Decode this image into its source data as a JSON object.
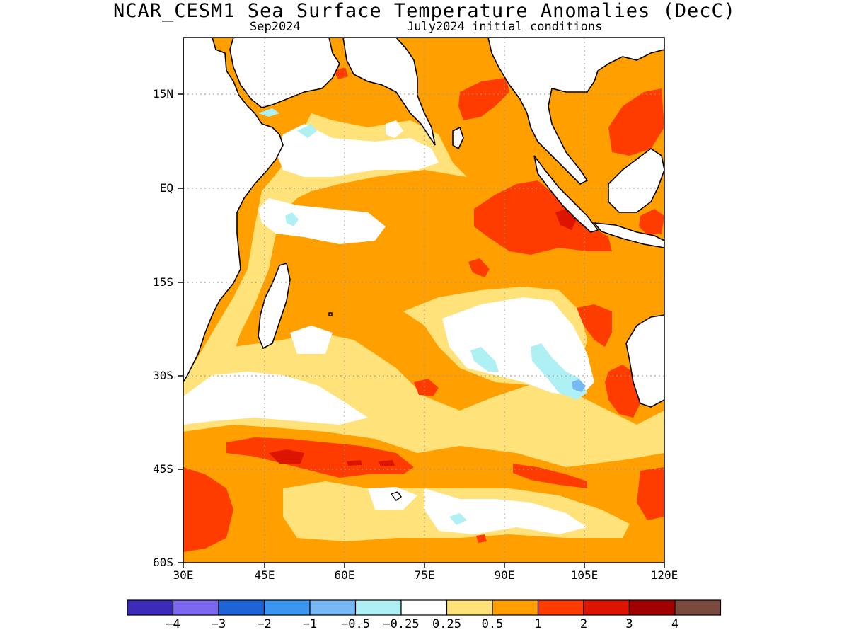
{
  "title": "NCAR_CESM1 Sea Surface Temperature Anomalies (DecC)",
  "subtitle_left": "Sep2024",
  "subtitle_right": "July2024 initial conditions",
  "lat_labels": [
    "15N",
    "EQ",
    "15S",
    "30S",
    "45S",
    "60S"
  ],
  "lon_labels": [
    "30E",
    "45E",
    "60E",
    "75E",
    "90E",
    "105E",
    "120E"
  ],
  "colorbar": {
    "colors": [
      "#3a2bb8",
      "#7b68ee",
      "#1e64d6",
      "#3c96f0",
      "#78b9f5",
      "#aff0f5",
      "#ffffff",
      "#ffe27a",
      "#ffa000",
      "#ff3c00",
      "#dc1400",
      "#a00000",
      "#7a4a3f"
    ],
    "labels": [
      "−4",
      "−3",
      "−2",
      "−1",
      "−0.5",
      "−0.25",
      "0.25",
      "0.5",
      "1",
      "2",
      "3",
      "4"
    ]
  },
  "colors": {
    "white": "#ffffff",
    "light_yellow": "#ffe27a",
    "orange": "#ffa000",
    "red_orange": "#ff3c00",
    "red": "#dc1400",
    "light_cyan": "#aff0f5",
    "light_blue": "#78b9f5",
    "land": "#ffffff",
    "coast": "#000000"
  }
}
